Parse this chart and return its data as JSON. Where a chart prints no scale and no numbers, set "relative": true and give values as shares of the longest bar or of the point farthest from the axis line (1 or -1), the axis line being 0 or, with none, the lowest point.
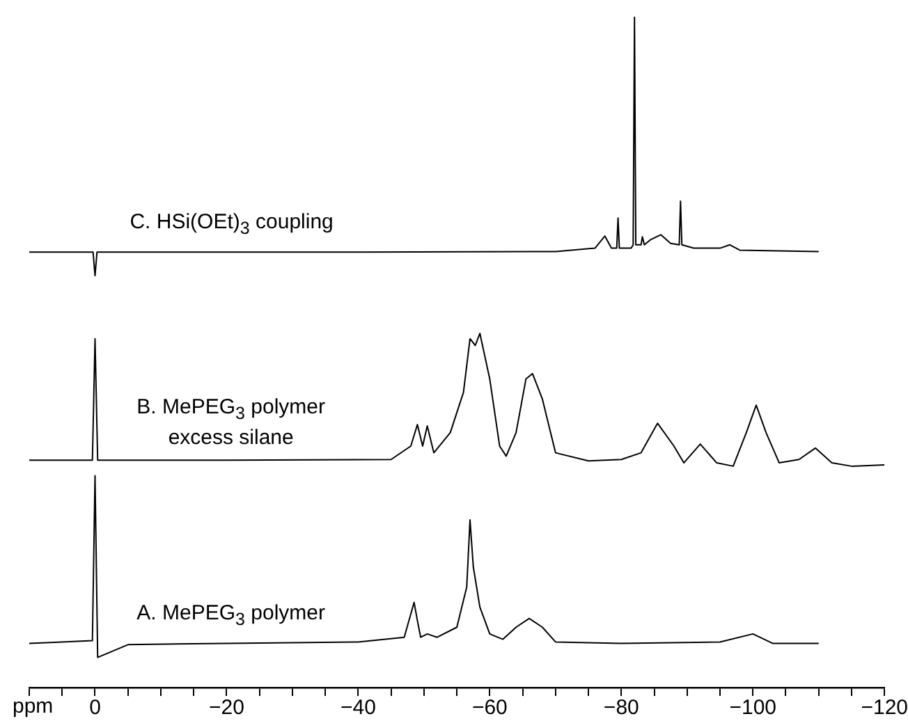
{
  "chart_data": {
    "type": "line",
    "relative": true,
    "xlabel": "ppm",
    "xlim": [
      10,
      -120
    ],
    "xticks": [
      {
        "value": 10,
        "label": null
      },
      {
        "value": 5,
        "label": null
      },
      0,
      {
        "value": -5,
        "label": null
      },
      {
        "value": -10,
        "label": null
      },
      {
        "value": -15,
        "label": null
      },
      {
        "value": -20,
        "label": "−20"
      },
      {
        "value": -25,
        "label": null
      },
      {
        "value": -30,
        "label": null
      },
      {
        "value": -35,
        "label": null
      },
      {
        "value": -40,
        "label": "−40"
      },
      {
        "value": -45,
        "label": null
      },
      {
        "value": -50,
        "label": null
      },
      {
        "value": -55,
        "label": null
      },
      {
        "value": -60,
        "label": "−60"
      },
      {
        "value": -65,
        "label": null
      },
      {
        "value": -70,
        "label": null
      },
      {
        "value": -75,
        "label": null
      },
      {
        "value": -80,
        "label": "−80"
      },
      {
        "value": -85,
        "label": null
      },
      {
        "value": -90,
        "label": null
      },
      {
        "value": -95,
        "label": null
      },
      {
        "value": -100,
        "label": "−100"
      },
      {
        "value": -105,
        "label": null
      },
      {
        "value": -110,
        "label": null
      },
      {
        "value": -115,
        "label": null
      },
      {
        "value": -120,
        "label": "−120"
      }
    ],
    "grid": false,
    "legend": false,
    "tick_labels": "x",
    "marker": "none",
    "line_style": "solid",
    "series": [
      {
        "name": "A. MePEG$_{3}$ polymer",
        "color": "#000000",
        "x": [
          10,
          5,
          0.4,
          0,
          -0.4,
          -5,
          -20,
          -40,
          -47,
          -48.5,
          -49,
          -49.5,
          -50.5,
          -52,
          -55,
          -56.5,
          -57,
          -57.5,
          -58.5,
          -60,
          -62,
          -64,
          -66,
          -68,
          -70,
          -80,
          -95,
          -100,
          -103,
          -110
        ],
        "values": [
          0.066,
          0.068,
          0.07,
          0.316,
          0.045,
          0.064,
          0.066,
          0.068,
          0.075,
          0.127,
          0.1,
          0.075,
          0.08,
          0.075,
          0.09,
          0.15,
          0.25,
          0.18,
          0.12,
          0.08,
          0.072,
          0.09,
          0.103,
          0.09,
          0.068,
          0.066,
          0.068,
          0.08,
          0.066,
          0.066
        ]
      },
      {
        "name": "B. MePEG$_{3}$ polymer excess silane",
        "color": "#000000",
        "x": [
          10,
          0.4,
          0,
          -0.4,
          -20,
          -45,
          -48,
          -49,
          -49.8,
          -50.5,
          -51.5,
          -54,
          -56,
          -57,
          -57.8,
          -58.5,
          -60,
          -61.5,
          -62.5,
          -64,
          -65.5,
          -66.5,
          -68,
          -70,
          -75,
          -80,
          -83,
          -85.5,
          -88,
          -89.5,
          -92,
          -94.5,
          -97,
          -99,
          -100.5,
          -102,
          -104,
          -107,
          -109.5,
          -112,
          -115,
          -120
        ],
        "values": [
          0.339,
          0.339,
          0.52,
          0.339,
          0.339,
          0.34,
          0.36,
          0.392,
          0.36,
          0.39,
          0.35,
          0.38,
          0.44,
          0.52,
          0.51,
          0.528,
          0.46,
          0.36,
          0.345,
          0.38,
          0.46,
          0.468,
          0.43,
          0.35,
          0.338,
          0.34,
          0.35,
          0.394,
          0.36,
          0.335,
          0.363,
          0.335,
          0.33,
          0.38,
          0.421,
          0.38,
          0.335,
          0.34,
          0.357,
          0.335,
          0.33,
          0.332
        ]
      },
      {
        "name": "C. HSi(OEt)$_{3}$ coupling",
        "color": "#000000",
        "x": [
          10,
          0.3,
          0,
          -0.3,
          -20,
          -40,
          -70,
          -76,
          -77.5,
          -78.5,
          -79.3,
          -79.5,
          -79.7,
          -81.5,
          -81.8,
          -82,
          -82.2,
          -83,
          -83.2,
          -83.5,
          -84.5,
          -86,
          -87.5,
          -88.8,
          -89,
          -89.2,
          -91,
          -95,
          -96.5,
          -98,
          -110
        ],
        "values": [
          0.649,
          0.649,
          0.614,
          0.649,
          0.649,
          0.649,
          0.65,
          0.655,
          0.673,
          0.655,
          0.655,
          0.7,
          0.655,
          0.655,
          0.66,
          1,
          0.66,
          0.66,
          0.672,
          0.66,
          0.668,
          0.675,
          0.662,
          0.66,
          0.725,
          0.66,
          0.655,
          0.655,
          0.66,
          0.652,
          0.65
        ]
      }
    ]
  }
}
